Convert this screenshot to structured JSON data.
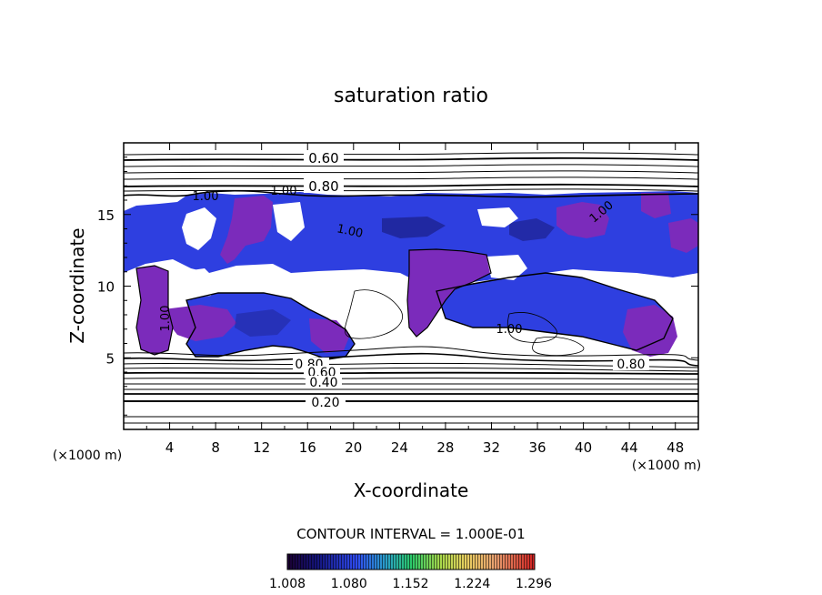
{
  "chart_data": {
    "type": "heatmap",
    "title": "saturation ratio",
    "xlabel": "X-coordinate",
    "ylabel": "Z-coordinate",
    "x_unit": "(×1000 m)",
    "z_unit": "(×1000 m)",
    "xlim": [
      0,
      50
    ],
    "ylim": [
      0,
      20
    ],
    "x_ticks": [
      "4",
      "8",
      "12",
      "16",
      "20",
      "24",
      "28",
      "32",
      "36",
      "40",
      "44",
      "48"
    ],
    "y_ticks": [
      "5",
      "10",
      "15"
    ],
    "contour_labels": [
      "0.60",
      "0.80",
      "1.00",
      "1.00",
      "1.00",
      "1.00",
      "1.00",
      "1.00",
      "0.80",
      "0.60",
      "0.40",
      "0.20",
      "0.80"
    ],
    "contour_interval": "CONTOUR INTERVAL = 1.000E-01",
    "colorbar_ticks": [
      "1.008",
      "1.080",
      "1.152",
      "1.224",
      "1.296"
    ],
    "colors": {
      "purple": "#7b2bbb",
      "blue": "#2e3fe0",
      "dark_blue": "#16166e"
    }
  }
}
